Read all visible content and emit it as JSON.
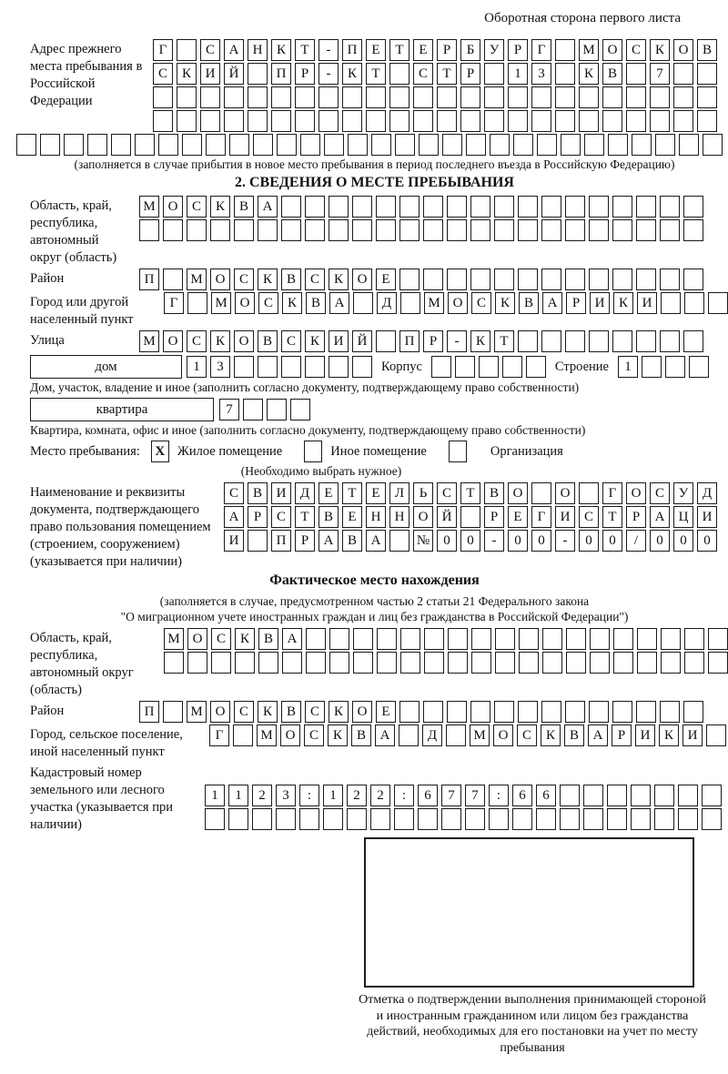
{
  "header": "Оборотная сторона первого листа",
  "prev_address": {
    "label": "Адрес прежнего места пребывания в Российской Федерации",
    "rows": [
      "Г САНКТ-ПЕТЕРБУРГ МОСКОВ",
      "СКИЙ ПР-КТ СТР 13 КВ 7",
      "",
      ""
    ],
    "overflow_row": "",
    "note": "(заполняется в случае прибытия в новое место пребывания в период последнего въезда в Российскую Федерацию)"
  },
  "section2": {
    "title": "2. СВЕДЕНИЯ О МЕСТЕ ПРЕБЫВАНИЯ",
    "region": {
      "label": "Область, край, республика, автономный округ (область)",
      "rows": [
        "МОСКВА",
        ""
      ]
    },
    "district": {
      "label": "Район",
      "row": "П МОСКВСКОЕ"
    },
    "city": {
      "label": "Город или другой населенный пункт",
      "row": "Г МОСКВА Д МОСКВАРИКИ"
    },
    "street": {
      "label": "Улица",
      "row": "МОСКОВСКИЙ ПР-КТ"
    },
    "house": {
      "box_label": "дом",
      "cells": "13",
      "korpus_label": "Корпус",
      "korpus_cells": "",
      "stroenie_label": "Строение",
      "stroenie_cells": "1",
      "note": "Дом, участок, владение и иное (заполнить согласно документу, подтверждающему право собственности)"
    },
    "apartment": {
      "box_label": "квартира",
      "cells": "7",
      "note": "Квартира, комната, офис и иное (заполнить согласно документу, подтверждающему право собственности)"
    },
    "stay": {
      "label": "Место пребывания:",
      "options": [
        {
          "mark": "X",
          "label": "Жилое помещение"
        },
        {
          "mark": "",
          "label": "Иное помещение"
        },
        {
          "mark": "",
          "label": "Организация"
        }
      ],
      "note": "(Необходимо выбрать нужное)"
    },
    "document": {
      "label": "Наименование и реквизиты документа, подтверждающего право пользования помещением (строением, сооружением) (указывается при наличии)",
      "rows": [
        "СВИДЕТЕЛЬСТВО О ГОСУД",
        "АРСТВЕННОЙ РЕГИСТРАЦИ",
        "И ПРАВА №00-00-00/000"
      ]
    }
  },
  "actual_location": {
    "title": "Фактическое место нахождения",
    "note_line1": "(заполняется в случае, предусмотренном частью 2 статьи 21 Федерального закона",
    "note_line2": "\"О миграционном учете иностранных граждан и лиц без гражданства в Российской Федерации\")",
    "region": {
      "label": "Область, край, республика, автономный округ (область)",
      "rows": [
        "МОСКВА",
        ""
      ]
    },
    "district": {
      "label": "Район",
      "row": "П МОСКВСКОЕ"
    },
    "city": {
      "label": "Город, сельское поселение, иной населенный пункт",
      "row": "Г МОСКВА Д МОСКВАРИКИ"
    },
    "cadastral": {
      "label": "Кадастровый номер земельного или лесного участка (указывается при наличии)",
      "rows": [
        "1123:122:677:66",
        ""
      ]
    },
    "mark_caption": "Отметка о подтверждении выполнения принимающей стороной и иностранным гражданином или лицом без гражданства действий, необходимых для его постановки на учет по месту пребывания"
  }
}
